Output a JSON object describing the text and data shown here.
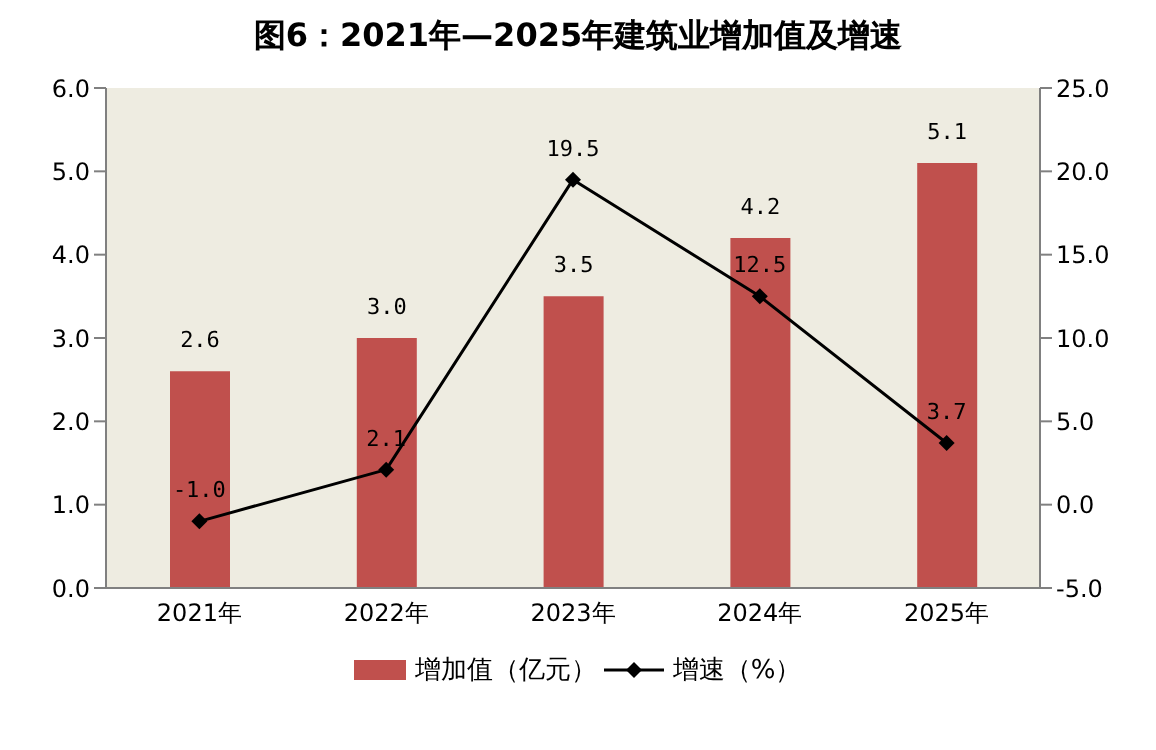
{
  "chart_data": {
    "type": "bar",
    "title": "图6：2021年—2025年建筑业增加值及增速",
    "categories": [
      "2021年",
      "2022年",
      "2023年",
      "2024年",
      "2025年"
    ],
    "series": [
      {
        "name": "增加值（亿元）",
        "color": "#c0504d",
        "values": [
          2.6,
          3.0,
          3.5,
          4.2,
          5.1
        ],
        "value_labels": [
          "2.6",
          "3.0",
          "3.5",
          "4.2",
          "5.1"
        ]
      },
      {
        "name": "增速（%）",
        "type": "line",
        "axis": "y2",
        "color": "#000000",
        "marker": "diamond",
        "values": [
          -1.0,
          2.1,
          19.5,
          12.5,
          3.7
        ],
        "value_labels": [
          "-1.0",
          "2.1",
          "19.5",
          "12.5",
          "3.7"
        ]
      }
    ],
    "ylim": [
      0,
      6
    ],
    "yticks": [
      {
        "value": 0,
        "label": "0.0"
      },
      {
        "value": 1,
        "label": "1.0"
      },
      {
        "value": 2,
        "label": "2.0"
      },
      {
        "value": 3,
        "label": "3.0"
      },
      {
        "value": 4,
        "label": "4.0"
      },
      {
        "value": 5,
        "label": "5.0"
      },
      {
        "value": 6,
        "label": "6.0"
      }
    ],
    "y2lim": [
      -5,
      25
    ],
    "y2ticks": [
      {
        "value": -5,
        "label": "-5.0"
      },
      {
        "value": 0,
        "label": "0.0"
      },
      {
        "value": 5,
        "label": "5.0"
      },
      {
        "value": 10,
        "label": "10.0"
      },
      {
        "value": 15,
        "label": "15.0"
      },
      {
        "value": 20,
        "label": "20.0"
      },
      {
        "value": 25,
        "label": "25.0"
      }
    ],
    "legend": "bottom"
  }
}
